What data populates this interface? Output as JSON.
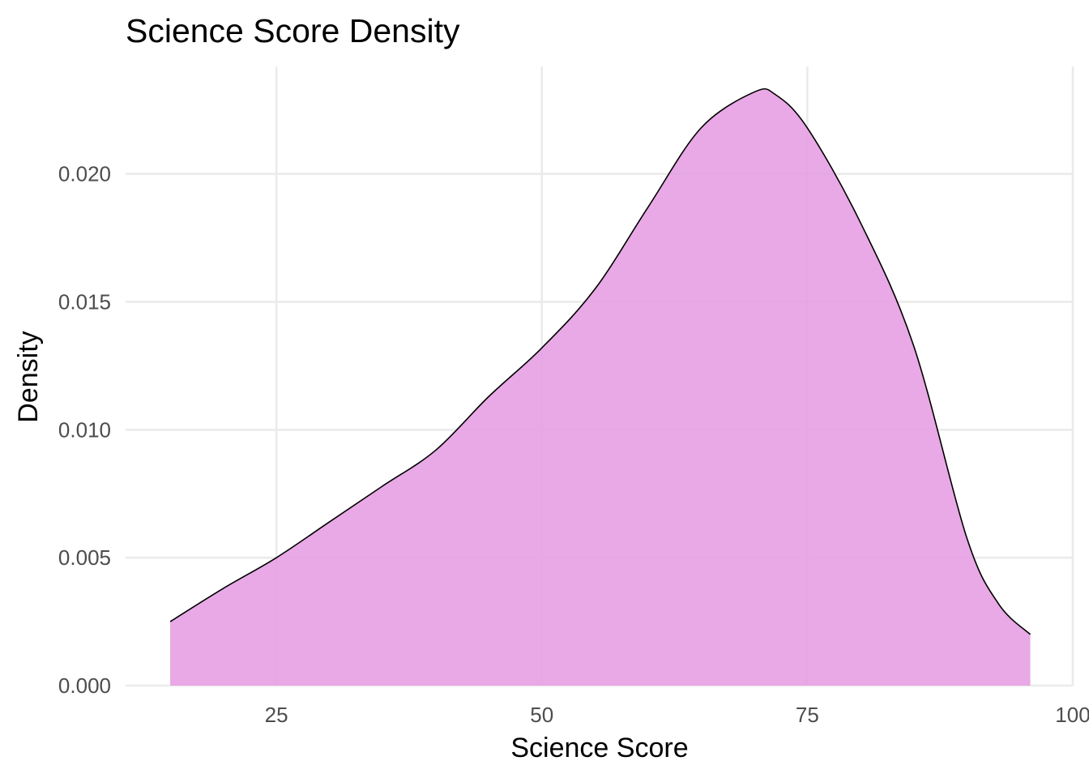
{
  "chart_data": {
    "type": "area",
    "title": "Science Score Density",
    "xlabel": "Science Score",
    "ylabel": "Density",
    "xlim": [
      10.8,
      100
    ],
    "ylim": [
      0,
      0.0242
    ],
    "x_ticks": [
      25,
      50,
      75,
      100
    ],
    "x_tick_labels": [
      "25",
      "50",
      "75",
      "100"
    ],
    "y_ticks": [
      0,
      0.005,
      0.01,
      0.015,
      0.02
    ],
    "y_tick_labels": [
      "0.000",
      "0.005",
      "0.010",
      "0.015",
      "0.020"
    ],
    "grid": true,
    "legend": "none",
    "fill_color": "#e6a0e3",
    "outline_color": "#000000",
    "series": [
      {
        "x": [
          15,
          20,
          25,
          30,
          35,
          40,
          45,
          50,
          55,
          60,
          65,
          70,
          72,
          75,
          80,
          85,
          90,
          93,
          96
        ],
        "y": [
          0.0025,
          0.0038,
          0.005,
          0.0064,
          0.0078,
          0.0092,
          0.0113,
          0.0132,
          0.0155,
          0.0187,
          0.0218,
          0.0232,
          0.0231,
          0.0218,
          0.0181,
          0.0133,
          0.0058,
          0.0032,
          0.002
        ]
      }
    ]
  }
}
